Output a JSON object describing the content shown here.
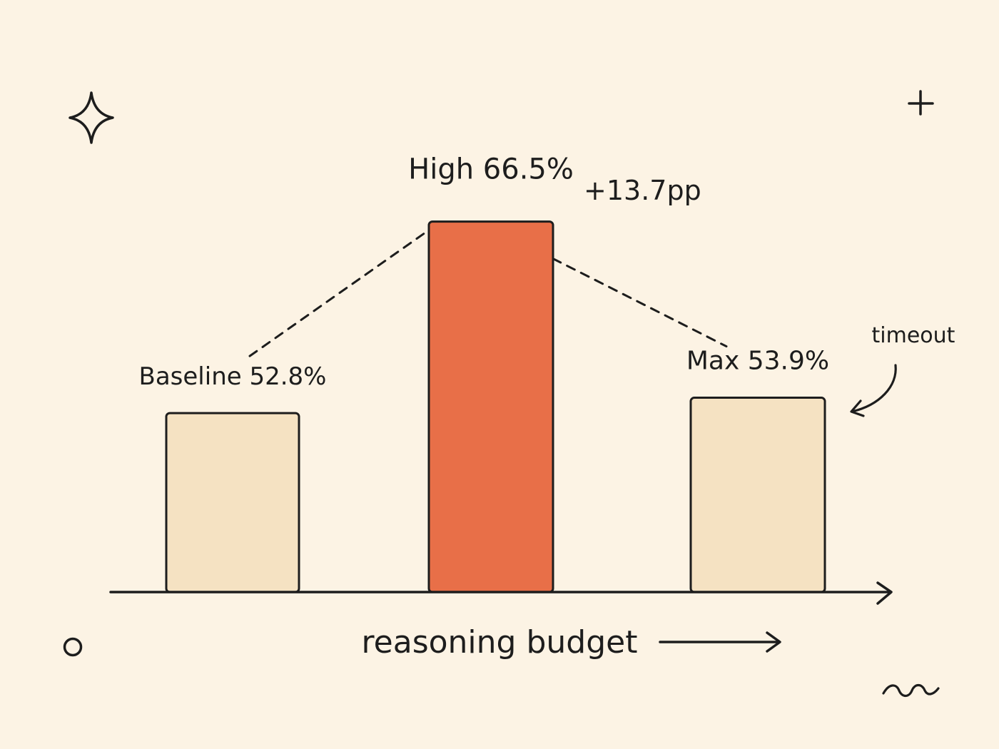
{
  "chart_data": {
    "type": "bar",
    "categories": [
      "Baseline",
      "High",
      "Max"
    ],
    "values": [
      52.8,
      66.5,
      53.9
    ],
    "data_labels": [
      "Baseline 52.8%",
      "High 66.5%",
      "Max 53.9%"
    ],
    "highlight_category": "High",
    "xlabel": "reasoning budget",
    "ylabel": "",
    "y_axis_shown": false,
    "grid": false,
    "annotations": [
      {
        "text": "+13.7pp",
        "between": [
          "Baseline",
          "High"
        ],
        "style": "dashed-connector"
      },
      {
        "text": "timeout",
        "target": "Max",
        "style": "curved-arrow"
      }
    ],
    "colors": {
      "background": "#fcf3e4",
      "bar": "#f5e2c2",
      "highlight_bar": "#e86f48",
      "ink": "#1d1d1d"
    }
  },
  "decorations": {
    "top_left": "sparkle-icon",
    "top_right": "plus-icon",
    "bottom_left": "circle-icon",
    "bottom_right": "squiggle-icon"
  }
}
